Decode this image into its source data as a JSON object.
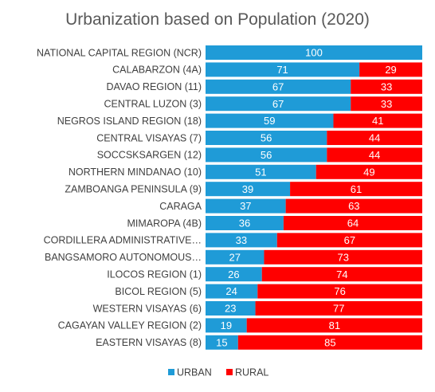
{
  "chart_data": {
    "type": "bar",
    "orientation": "horizontal",
    "stacked": true,
    "title": "Urbanization based on Population (2020)",
    "categories": [
      "NATIONAL CAPITAL REGION (NCR)",
      "CALABARZON (4A)",
      "DAVAO REGION (11)",
      "CENTRAL LUZON (3)",
      "NEGROS ISLAND REGION (18)",
      "CENTRAL VISAYAS (7)",
      "SOCCSKSARGEN (12)",
      "NORTHERN MINDANAO (10)",
      "ZAMBOANGA PENINSULA (9)",
      "CARAGA",
      "MIMAROPA (4B)",
      "CORDILLERA ADMINISTRATIVE…",
      "BANGSAMORO AUTONOMOUS…",
      "ILOCOS REGION (1)",
      "BICOL REGION (5)",
      "WESTERN VISAYAS (6)",
      "CAGAYAN VALLEY REGION (2)",
      "EASTERN VISAYAS (8)"
    ],
    "series": [
      {
        "name": "URBAN",
        "color": "#1f9bd7",
        "values": [
          100,
          71,
          67,
          67,
          59,
          56,
          56,
          51,
          39,
          37,
          36,
          33,
          27,
          26,
          24,
          23,
          19,
          15
        ]
      },
      {
        "name": "RURAL",
        "color": "#ff0000",
        "values": [
          0,
          29,
          33,
          33,
          41,
          44,
          44,
          49,
          61,
          63,
          64,
          67,
          73,
          74,
          76,
          77,
          81,
          85
        ]
      }
    ],
    "xlim": [
      0,
      100
    ],
    "legend_position": "bottom",
    "grid": false
  }
}
